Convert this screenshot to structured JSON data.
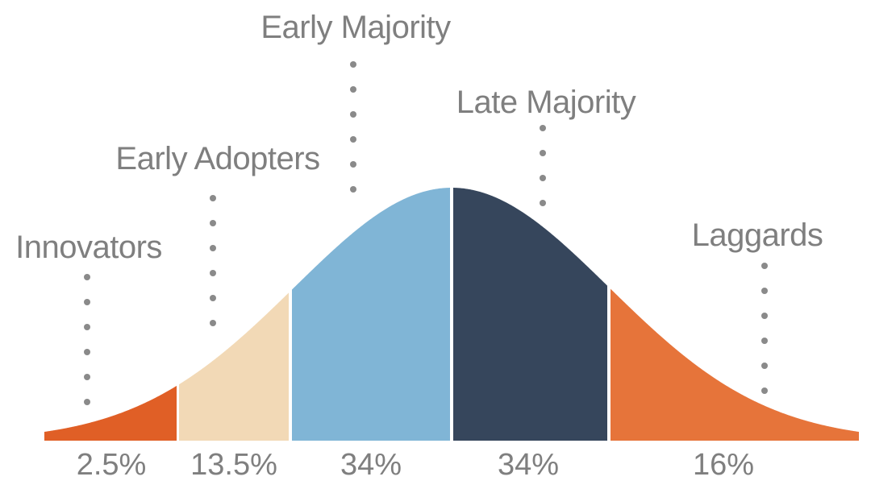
{
  "segments": [
    {
      "name": "Innovators",
      "percent": "2.5%",
      "color": "#e05f26"
    },
    {
      "name": "Early Adopters",
      "percent": "13.5%",
      "color": "#f2d9b6"
    },
    {
      "name": "Early Majority",
      "percent": "34%",
      "color": "#80b5d6"
    },
    {
      "name": "Late Majority",
      "percent": "34%",
      "color": "#36465c"
    },
    {
      "name": "Laggards",
      "percent": "16%",
      "color": "#e6743a"
    }
  ]
}
